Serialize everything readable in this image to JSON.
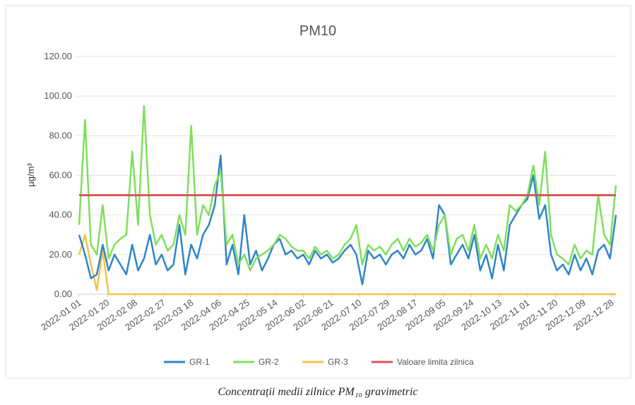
{
  "chart_data": {
    "type": "line",
    "title": "PM10",
    "ylabel": "µg/m³",
    "caption": "Concentrații medii zilnice PM₁₀ gravimetric",
    "x": [
      "2022-01 01",
      "2022-01 05",
      "2022-01 09",
      "2022-01 13",
      "2022-01 17",
      "2022-01 21",
      "2022-01 25",
      "2022-01 29",
      "2022-02 02",
      "2022-02 06",
      "2022-02 10",
      "2022-02 14",
      "2022-02 18",
      "2022-02 22",
      "2022-02 26",
      "2022-03 02",
      "2022-03 06",
      "2022-03 10",
      "2022-03 14",
      "2022-03 18",
      "2022-03 22",
      "2022-03 26",
      "2022-03 30",
      "2022-04 03",
      "2022-04 07",
      "2022-04 11",
      "2022-04 15",
      "2022-04 19",
      "2022-04 23",
      "2022-04 27",
      "2022-05 01",
      "2022-05 05",
      "2022-05 09",
      "2022-05 13",
      "2022-05 17",
      "2022-05 21",
      "2022-05 25",
      "2022-05 29",
      "2022-06 02",
      "2022-06 06",
      "2022-06 10",
      "2022-06 14",
      "2022-06 18",
      "2022-06 22",
      "2022-06 26",
      "2022-06 30",
      "2022-07 04",
      "2022-07 08",
      "2022-07 12",
      "2022-07 16",
      "2022-07 20",
      "2022-07 24",
      "2022-07 28",
      "2022-08 01",
      "2022-08 05",
      "2022-08 09",
      "2022-08 13",
      "2022-08 17",
      "2022-08 21",
      "2022-08 25",
      "2022-08 29",
      "2022-09 02",
      "2022-09 06",
      "2022-09 10",
      "2022-09 14",
      "2022-09 18",
      "2022-09 22",
      "2022-09 26",
      "2022-09 30",
      "2022-10 04",
      "2022-10 08",
      "2022-10 12",
      "2022-10 16",
      "2022-10 20",
      "2022-10 24",
      "2022-10 28",
      "2022-11 01",
      "2022-11 05",
      "2022-11 09",
      "2022-11 13",
      "2022-11 17",
      "2022-11 21",
      "2022-11 25",
      "2022-11 29",
      "2022-12 03",
      "2022-12 07",
      "2022-12 11",
      "2022-12 15",
      "2022-12 19",
      "2022-12 23",
      "2022-12 27",
      "2022-12 31"
    ],
    "series": [
      {
        "name": "GR-1",
        "color": "#2e86c8",
        "values": [
          30,
          20,
          8,
          10,
          25,
          12,
          20,
          15,
          10,
          25,
          12,
          18,
          30,
          15,
          20,
          12,
          15,
          35,
          10,
          25,
          18,
          30,
          35,
          45,
          70,
          15,
          25,
          10,
          40,
          15,
          22,
          12,
          18,
          25,
          28,
          20,
          22,
          18,
          20,
          15,
          22,
          18,
          20,
          16,
          18,
          22,
          25,
          20,
          5,
          22,
          18,
          20,
          15,
          20,
          22,
          18,
          25,
          20,
          22,
          28,
          18,
          45,
          40,
          15,
          20,
          25,
          18,
          30,
          12,
          20,
          8,
          25,
          12,
          35,
          40,
          45,
          48,
          60,
          38,
          45,
          20,
          12,
          15,
          10,
          20,
          12,
          18,
          10,
          22,
          25,
          18,
          40
        ]
      },
      {
        "name": "GR-2",
        "color": "#7ee05a",
        "values": [
          35,
          88,
          25,
          20,
          45,
          18,
          25,
          28,
          30,
          72,
          35,
          95,
          40,
          25,
          30,
          22,
          25,
          40,
          30,
          85,
          30,
          45,
          40,
          55,
          62,
          25,
          30,
          15,
          20,
          12,
          18,
          20,
          22,
          25,
          30,
          28,
          24,
          22,
          22,
          18,
          24,
          20,
          22,
          18,
          20,
          25,
          28,
          35,
          15,
          25,
          22,
          24,
          20,
          25,
          28,
          22,
          28,
          24,
          26,
          30,
          22,
          35,
          40,
          20,
          28,
          30,
          22,
          35,
          18,
          25,
          18,
          30,
          22,
          45,
          42,
          45,
          50,
          65,
          45,
          72,
          30,
          20,
          18,
          15,
          25,
          18,
          22,
          20,
          50,
          30,
          25,
          55
        ]
      },
      {
        "name": "GR-3",
        "color": "#f2c24a",
        "values": [
          20,
          30,
          15,
          2,
          22,
          0,
          0,
          0,
          0,
          0,
          0,
          0,
          0,
          0,
          0,
          0,
          0,
          0,
          0,
          0,
          0,
          0,
          0,
          0,
          0,
          0,
          0,
          0,
          0,
          0,
          0,
          0,
          0,
          0,
          0,
          0,
          0,
          0,
          0,
          0,
          0,
          0,
          0,
          0,
          0,
          0,
          0,
          0,
          0,
          0,
          0,
          0,
          0,
          0,
          0,
          0,
          0,
          0,
          0,
          0,
          0,
          0,
          0,
          0,
          0,
          0,
          0,
          0,
          0,
          0,
          0,
          0,
          0,
          0,
          0,
          0,
          0,
          0,
          0,
          0,
          0,
          0,
          0,
          0,
          0,
          0,
          0,
          0,
          0,
          0,
          0,
          0
        ]
      }
    ],
    "limit": {
      "name": "Valoare limita zilnica",
      "value": 50,
      "color": "#d9545b"
    },
    "xlim": [
      "2022-01 01",
      "2022-12 31"
    ],
    "xticks": [
      "2022-01 01",
      "2022-01 20",
      "2022-02 08",
      "2022-02 27",
      "2022-03 18",
      "2022-04 06",
      "2022-04 25",
      "2022-05 14",
      "2022-06 02",
      "2022-06 21",
      "2022-07 10",
      "2022-07 29",
      "2022-08 17",
      "2022-09 05",
      "2022-09 24",
      "2022-10 13",
      "2022-11 01",
      "2022-11 20",
      "2022-12 09",
      "2022-12 28"
    ],
    "ylim": [
      0,
      120
    ],
    "yticks": [
      {
        "value": 0,
        "label": "0.00"
      },
      {
        "value": 20,
        "label": "20.00"
      },
      {
        "value": 40,
        "label": "40.00"
      },
      {
        "value": 60,
        "label": "60.00"
      },
      {
        "value": 80,
        "label": "80.00"
      },
      {
        "value": 100,
        "label": "100.00"
      },
      {
        "value": 120,
        "label": "120.00"
      }
    ],
    "grid": true,
    "legend": "bottom"
  }
}
